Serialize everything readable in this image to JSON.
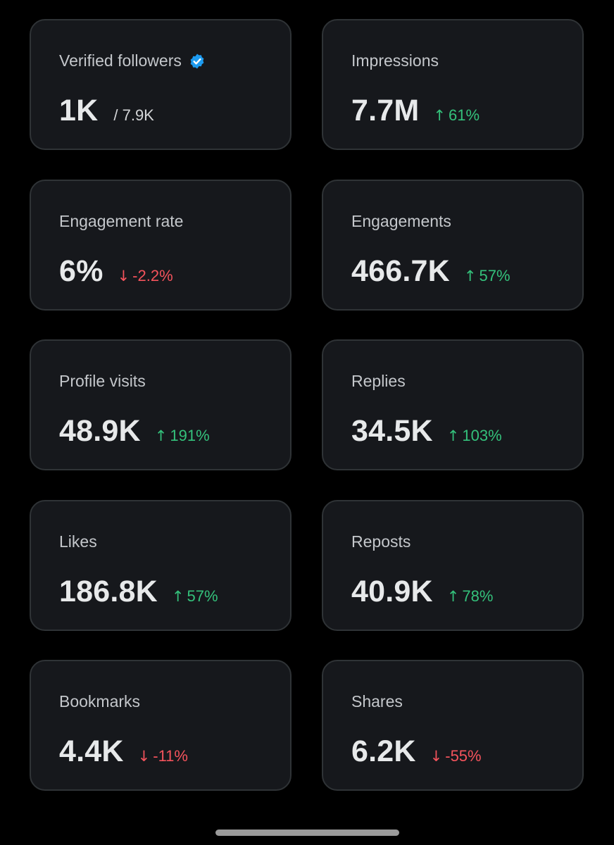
{
  "cards": [
    {
      "label": "Verified followers",
      "value": "1K",
      "sub": "/ 7.9K",
      "verified_icon": "verified-badge-icon",
      "badge_color": "#1d9bf0"
    },
    {
      "label": "Impressions",
      "value": "7.7M",
      "delta": "61%",
      "direction": "up",
      "arrow": "↑"
    },
    {
      "label": "Engagement rate",
      "value": "6%",
      "delta": "-2.2%",
      "direction": "down",
      "arrow": "↓"
    },
    {
      "label": "Engagements",
      "value": "466.7K",
      "delta": "57%",
      "direction": "up",
      "arrow": "↑"
    },
    {
      "label": "Profile visits",
      "value": "48.9K",
      "delta": "191%",
      "direction": "up",
      "arrow": "↑"
    },
    {
      "label": "Replies",
      "value": "34.5K",
      "delta": "103%",
      "direction": "up",
      "arrow": "↑"
    },
    {
      "label": "Likes",
      "value": "186.8K",
      "delta": "57%",
      "direction": "up",
      "arrow": "↑"
    },
    {
      "label": "Reposts",
      "value": "40.9K",
      "delta": "78%",
      "direction": "up",
      "arrow": "↑"
    },
    {
      "label": "Bookmarks",
      "value": "4.4K",
      "delta": "-11%",
      "direction": "down",
      "arrow": "↓"
    },
    {
      "label": "Shares",
      "value": "6.2K",
      "delta": "-55%",
      "direction": "down",
      "arrow": "↓"
    }
  ],
  "colors": {
    "background": "#000000",
    "card": "#16181c",
    "card_border": "#2f3336",
    "positive": "#34c17b",
    "negative": "#f4535c",
    "verified": "#1d9bf0"
  }
}
